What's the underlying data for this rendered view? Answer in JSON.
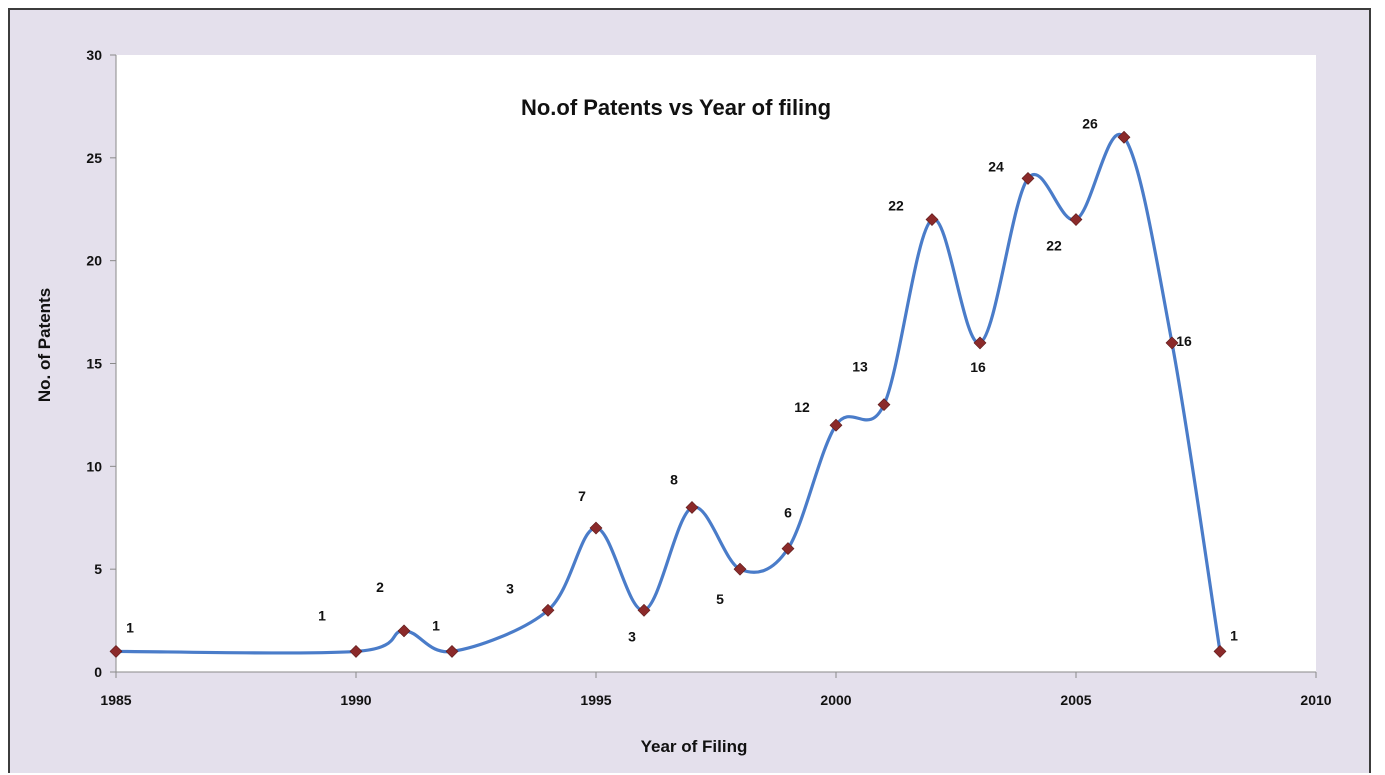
{
  "chart_data": {
    "type": "line",
    "title": "No.of Patents vs Year of filing",
    "xlabel": "Year of Filing",
    "ylabel": "No. of  Patents",
    "xlim": [
      1985,
      2010
    ],
    "ylim": [
      0,
      30
    ],
    "xticks": [
      "1985",
      "1990",
      "1995",
      "2000",
      "2005",
      "2010"
    ],
    "yticks": [
      "0",
      "5",
      "10",
      "15",
      "20",
      "25",
      "30"
    ],
    "grid": false,
    "legend": "none",
    "line_style": "smoothed",
    "marker": "diamond",
    "colors": {
      "line": "#4a7cc9",
      "marker": "#8b2a2a",
      "plot_background": "#ffffff",
      "chart_background": "#e4e0ec"
    },
    "series": [
      {
        "x": [
          1985,
          1990,
          1991,
          1992,
          1994,
          1995,
          1996,
          1997,
          1998,
          1999,
          2000,
          2001,
          2002,
          2003,
          2004,
          2005,
          2006,
          2007,
          2008
        ],
        "values": [
          1,
          1,
          2,
          1,
          3,
          7,
          3,
          8,
          5,
          6,
          12,
          13,
          22,
          16,
          24,
          22,
          26,
          16,
          1
        ]
      }
    ],
    "data_labels": [
      "1",
      "1",
      "2",
      "1",
      "3",
      "7",
      "3",
      "8",
      "5",
      "6",
      "12",
      "13",
      "22",
      "16",
      "24",
      "22",
      "26",
      "16",
      "1"
    ]
  }
}
